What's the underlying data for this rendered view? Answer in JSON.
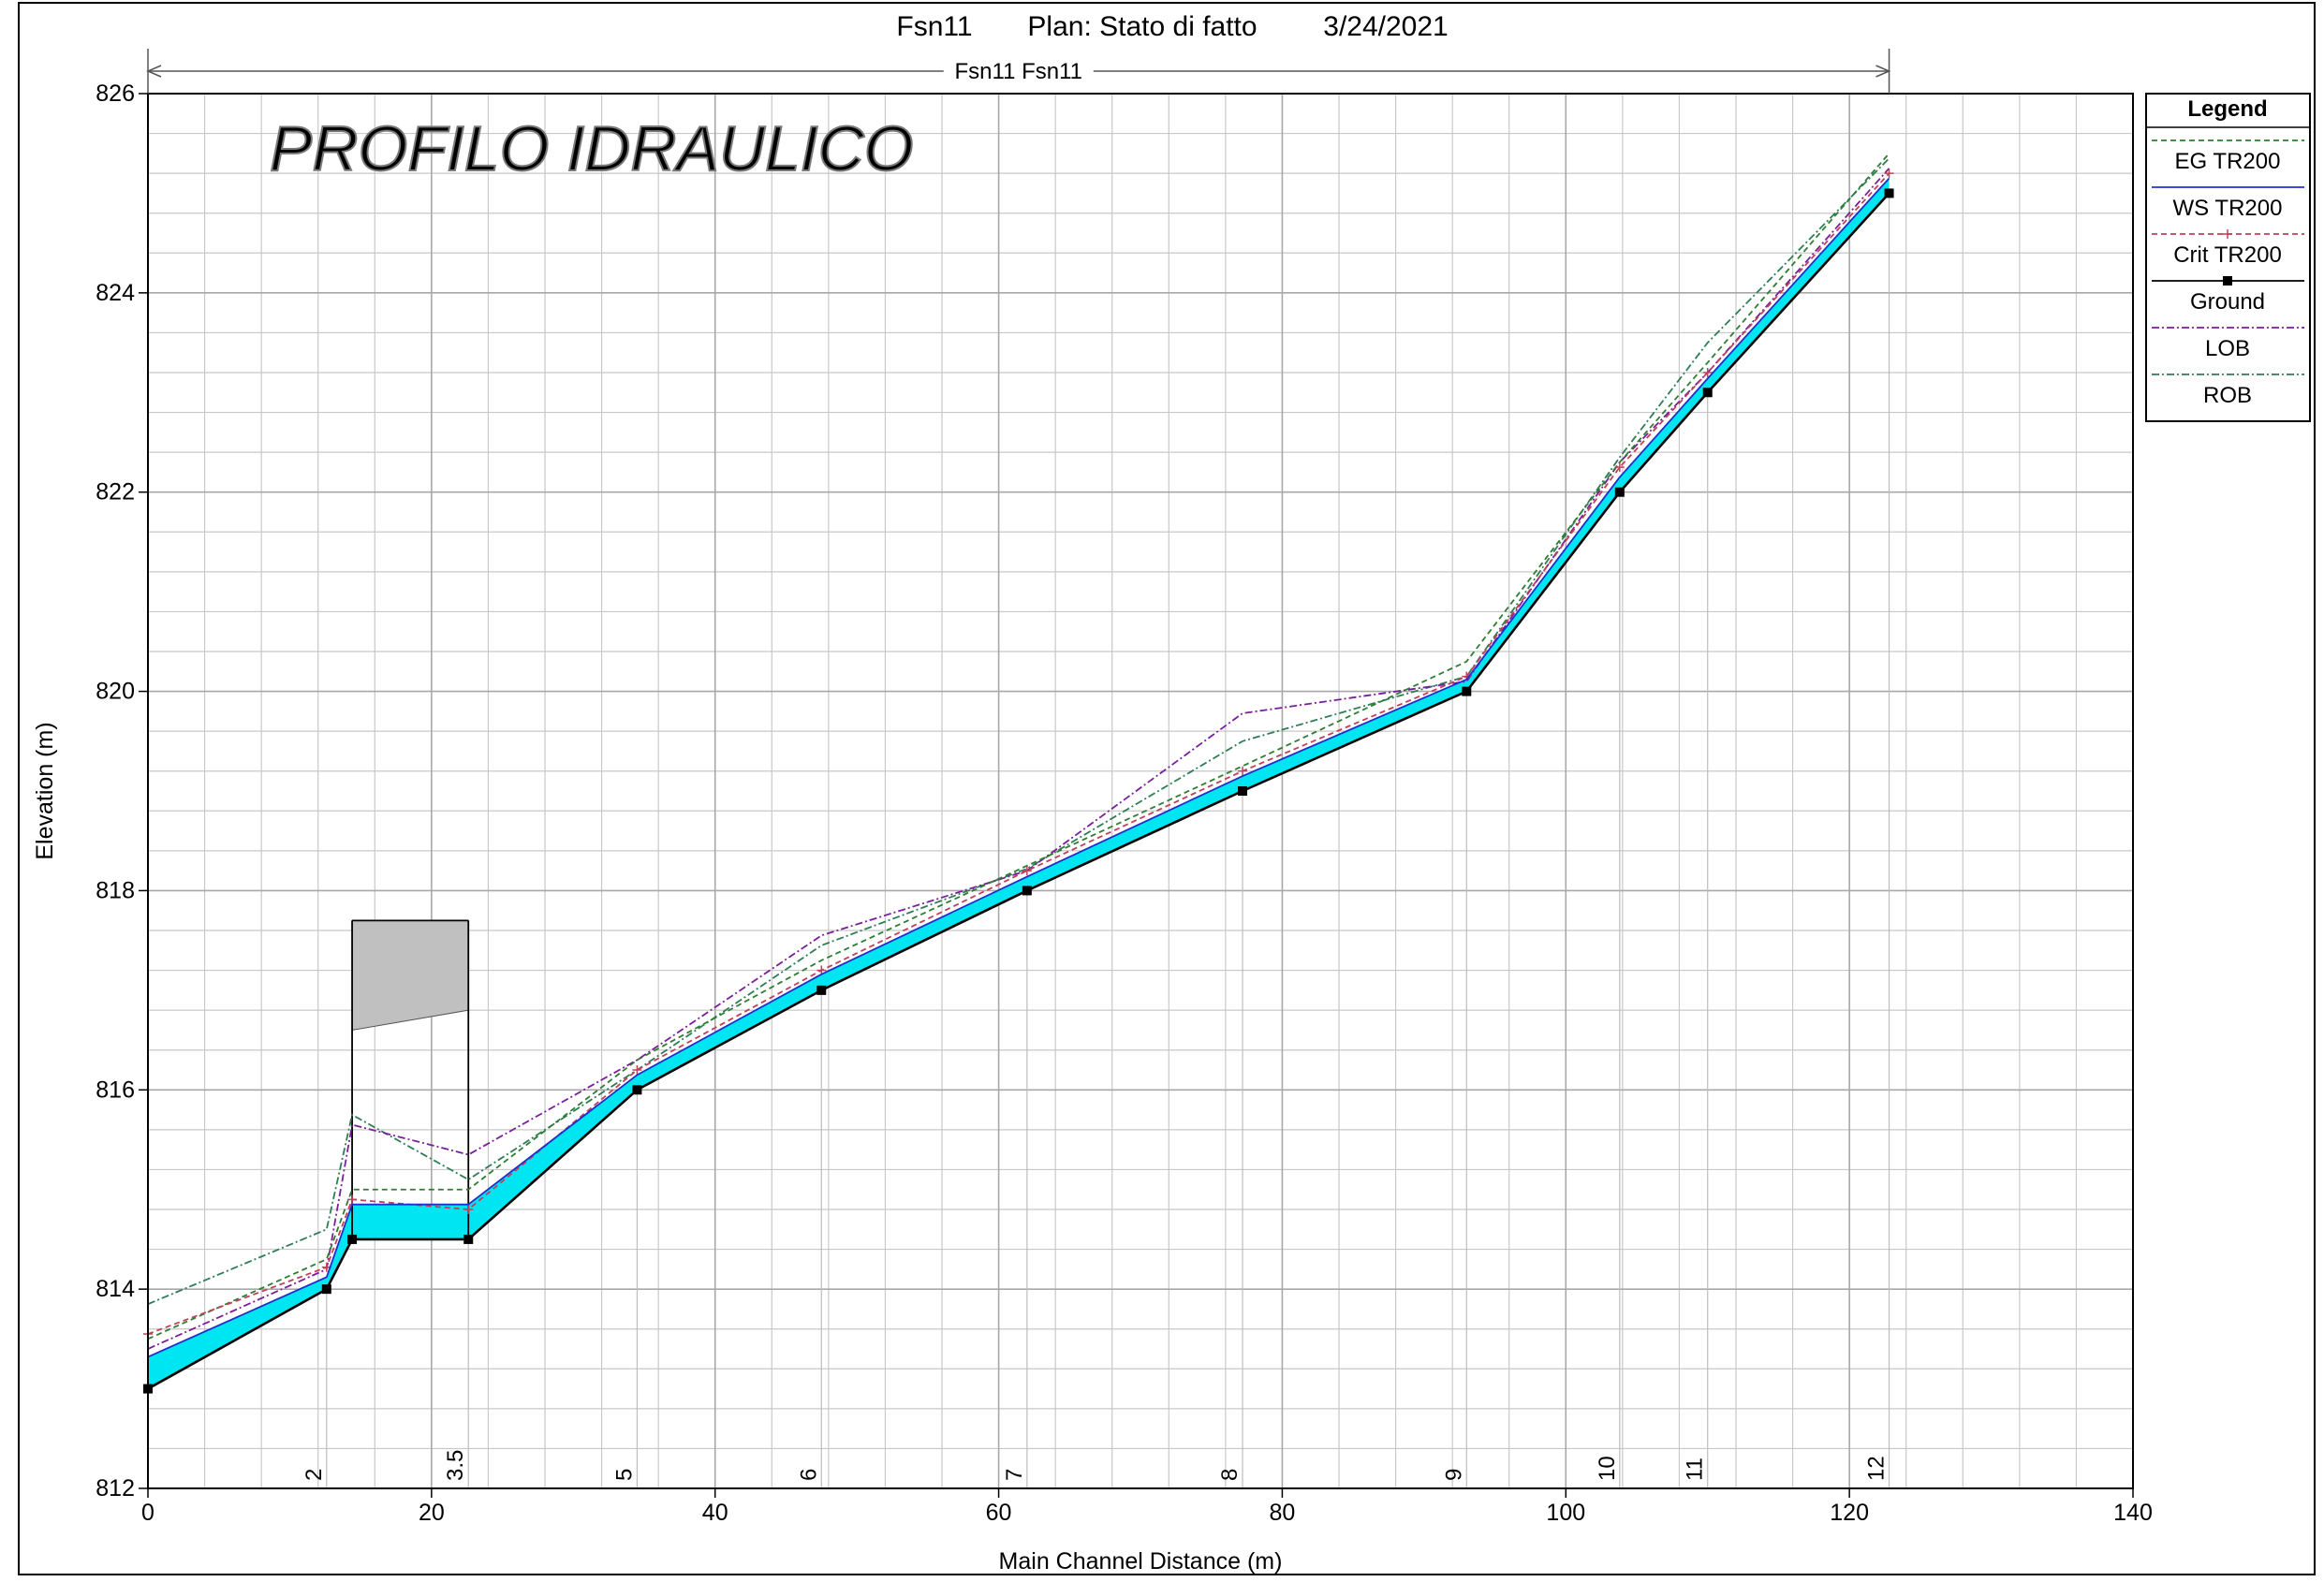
{
  "header": {
    "title_left": "Fsn11",
    "title_plan": "Plan: Stato di fatto",
    "title_date": "3/24/2021",
    "reach_label": "Fsn11 Fsn11",
    "watermark": "PROFILO IDRAULICO"
  },
  "legend": {
    "title": "Legend",
    "entries": [
      {
        "label": "EG  TR200",
        "color": "#2e7d32",
        "style": "dashed",
        "marker": "none"
      },
      {
        "label": "WS  TR200",
        "color": "#1f2fd0",
        "style": "solid",
        "marker": "none"
      },
      {
        "label": "Crit  TR200",
        "color": "#c0405a",
        "style": "dashed",
        "marker": "plus"
      },
      {
        "label": "Ground",
        "color": "#000000",
        "style": "solid",
        "marker": "square"
      },
      {
        "label": "LOB",
        "color": "#7a1f9c",
        "style": "dashdot",
        "marker": "none"
      },
      {
        "label": "ROB",
        "color": "#2e7d55",
        "style": "dashdot",
        "marker": "none"
      }
    ]
  },
  "colors": {
    "water_fill": "#00e5f2",
    "structure_fill": "#c0c0c0",
    "grid_major": "#a8a8a8",
    "grid_minor": "#c8c8c8"
  },
  "chart_data": {
    "type": "line",
    "xlabel": "Main Channel Distance (m)",
    "ylabel": "Elevation (m)",
    "xlim": [
      0,
      140
    ],
    "ylim": [
      812,
      826
    ],
    "x_ticks": [
      0,
      20,
      40,
      60,
      80,
      100,
      120,
      140
    ],
    "y_ticks": [
      812,
      814,
      816,
      818,
      820,
      822,
      824,
      826
    ],
    "grid": true,
    "legend_position": "right",
    "stations": [
      {
        "label": "2",
        "x": 12.6
      },
      {
        "label": "3.5",
        "x": 22.6
      },
      {
        "label": "5",
        "x": 34.5
      },
      {
        "label": "6",
        "x": 47.5
      },
      {
        "label": "7",
        "x": 62.0
      },
      {
        "label": "8",
        "x": 77.2
      },
      {
        "label": "9",
        "x": 93.0
      },
      {
        "label": "10",
        "x": 103.8
      },
      {
        "label": "11",
        "x": 110.0
      },
      {
        "label": "12",
        "x": 122.8
      }
    ],
    "reach_extent": [
      0,
      122.8
    ],
    "bridge": {
      "x_start": 14.4,
      "x_end": 22.6,
      "deck_top": 817.7,
      "low_chord_upstream": 816.6,
      "low_chord_downstream": 816.8
    },
    "series": [
      {
        "name": "Ground",
        "x": [
          0,
          12.6,
          14.4,
          22.6,
          34.5,
          47.5,
          62.0,
          77.2,
          93.0,
          103.8,
          110.0,
          122.8
        ],
        "y": [
          813.0,
          814.0,
          814.5,
          814.5,
          816.0,
          817.0,
          818.0,
          819.0,
          820.0,
          822.0,
          823.0,
          825.0
        ]
      },
      {
        "name": "WS  TR200",
        "x": [
          0,
          12.6,
          14.4,
          22.6,
          34.5,
          47.5,
          62.0,
          77.2,
          93.0,
          103.8,
          110.0,
          122.8
        ],
        "y": [
          813.32,
          814.12,
          814.85,
          814.85,
          816.15,
          817.16,
          818.14,
          819.15,
          820.12,
          822.15,
          823.14,
          825.15
        ]
      },
      {
        "name": "EG  TR200",
        "x": [
          0,
          12.6,
          14.4,
          22.6,
          34.5,
          47.5,
          62.0,
          77.2,
          93.0,
          103.8,
          110.0,
          122.8
        ],
        "y": [
          813.5,
          814.3,
          815.0,
          815.0,
          816.3,
          817.3,
          818.25,
          819.25,
          820.3,
          822.3,
          823.3,
          825.4
        ]
      },
      {
        "name": "Crit  TR200",
        "x": [
          0,
          12.6,
          14.4,
          22.6,
          34.5,
          47.5,
          62.0,
          77.2,
          93.0,
          103.8,
          110.0,
          122.8
        ],
        "y": [
          813.55,
          814.22,
          814.9,
          814.8,
          816.2,
          817.2,
          818.2,
          819.2,
          820.15,
          822.25,
          823.2,
          825.2
        ]
      },
      {
        "name": "LOB",
        "x": [
          0,
          12.6,
          14.4,
          22.6,
          34.5,
          47.5,
          62.0,
          77.2,
          93.0,
          103.8,
          110.0,
          122.8
        ],
        "y": [
          813.4,
          814.2,
          815.65,
          815.35,
          816.3,
          817.55,
          818.2,
          819.78,
          820.1,
          822.3,
          823.2,
          825.25
        ]
      },
      {
        "name": "ROB",
        "x": [
          0,
          12.6,
          14.4,
          22.6,
          34.5,
          47.5,
          62.0,
          77.2,
          93.0,
          103.8,
          110.0,
          122.8
        ],
        "y": [
          813.85,
          814.6,
          815.75,
          815.1,
          816.2,
          817.45,
          818.22,
          819.5,
          820.15,
          822.35,
          823.5,
          825.35
        ]
      }
    ]
  }
}
